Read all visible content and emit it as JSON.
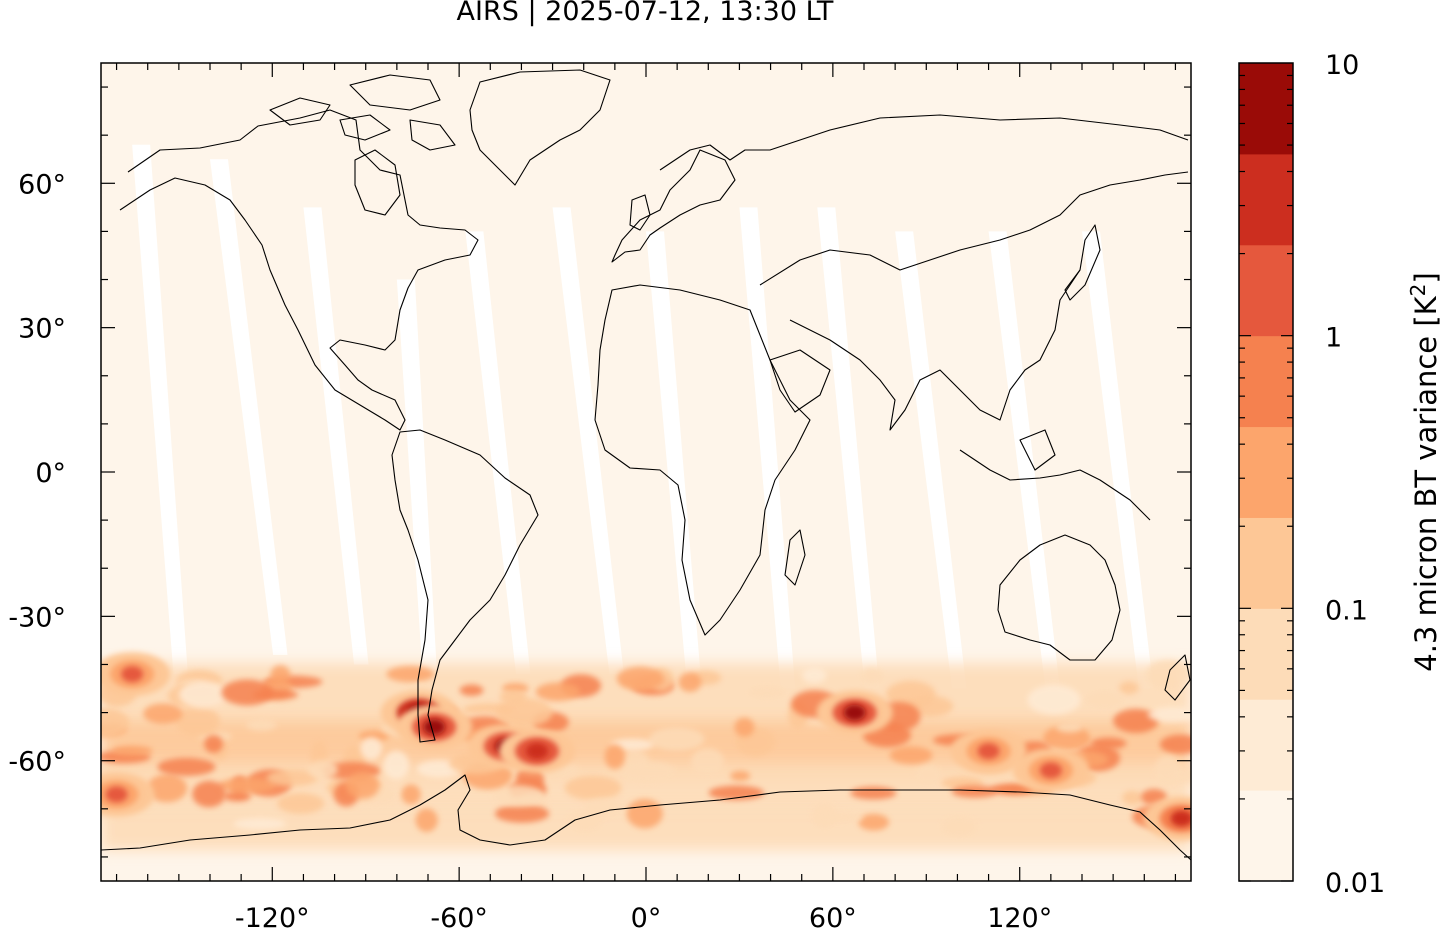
{
  "title": "AIRS | 2025-07-12, 13:30 LT",
  "map": {
    "projection": "equirectangular",
    "lon_range": [
      -175,
      175
    ],
    "lat_range": [
      -85,
      85
    ],
    "x_ticks": [
      -120,
      -60,
      0,
      60,
      120
    ],
    "x_tick_labels": [
      "-120°",
      "-60°",
      "0°",
      "60°",
      "120°"
    ],
    "y_ticks": [
      60,
      30,
      0,
      -30,
      -60
    ],
    "y_tick_labels": [
      "60°",
      "30°",
      "0°",
      "-30°",
      "-60°"
    ],
    "background_fill": "#fef5ea",
    "swath_gap_color": "#ffffff",
    "coastline_color": "#000000",
    "description_of_field": "4.3 micron brightness temperature variance; enhanced values along southern hemisphere storm track, maximum near southern Andes / Drake Passage"
  },
  "colorbar": {
    "label_pre": "4.3 micron BT variance [K",
    "label_sup": "2",
    "label_post": "]",
    "scale": "log",
    "range": [
      0.01,
      10
    ],
    "tick_labels": [
      "10",
      "1",
      "0.1",
      "0.01"
    ],
    "colors": [
      "#fef5ea",
      "#feebd5",
      "#fddcb8",
      "#fdc796",
      "#fca56c",
      "#f5814f",
      "#e5583d",
      "#cc2e1f",
      "#9a0b07"
    ]
  },
  "chart_data": {
    "type": "heatmap",
    "title": "AIRS | 2025-07-12, 13:30 LT",
    "xlabel": "",
    "ylabel": "",
    "xlim": [
      -175,
      175
    ],
    "ylim": [
      -85,
      85
    ],
    "colorbar_label": "4.3 micron BT variance [K2]",
    "colorbar_range": [
      0.01,
      10
    ],
    "colorbar_scale": "log",
    "hotspots": [
      {
        "lon": -73,
        "lat": -50,
        "value": 10
      },
      {
        "lon": -68,
        "lat": -53,
        "value": 6
      },
      {
        "lon": -45,
        "lat": -57,
        "value": 5
      },
      {
        "lon": -35,
        "lat": -58,
        "value": 4
      },
      {
        "lon": 67,
        "lat": -50,
        "value": 6
      },
      {
        "lon": 110,
        "lat": -58,
        "value": 1.5
      },
      {
        "lon": 130,
        "lat": -62,
        "value": 1.2
      },
      {
        "lon": 172,
        "lat": -72,
        "value": 3
      },
      {
        "lon": -170,
        "lat": -67,
        "value": 1.5
      },
      {
        "lon": -165,
        "lat": -42,
        "value": 1
      }
    ]
  }
}
